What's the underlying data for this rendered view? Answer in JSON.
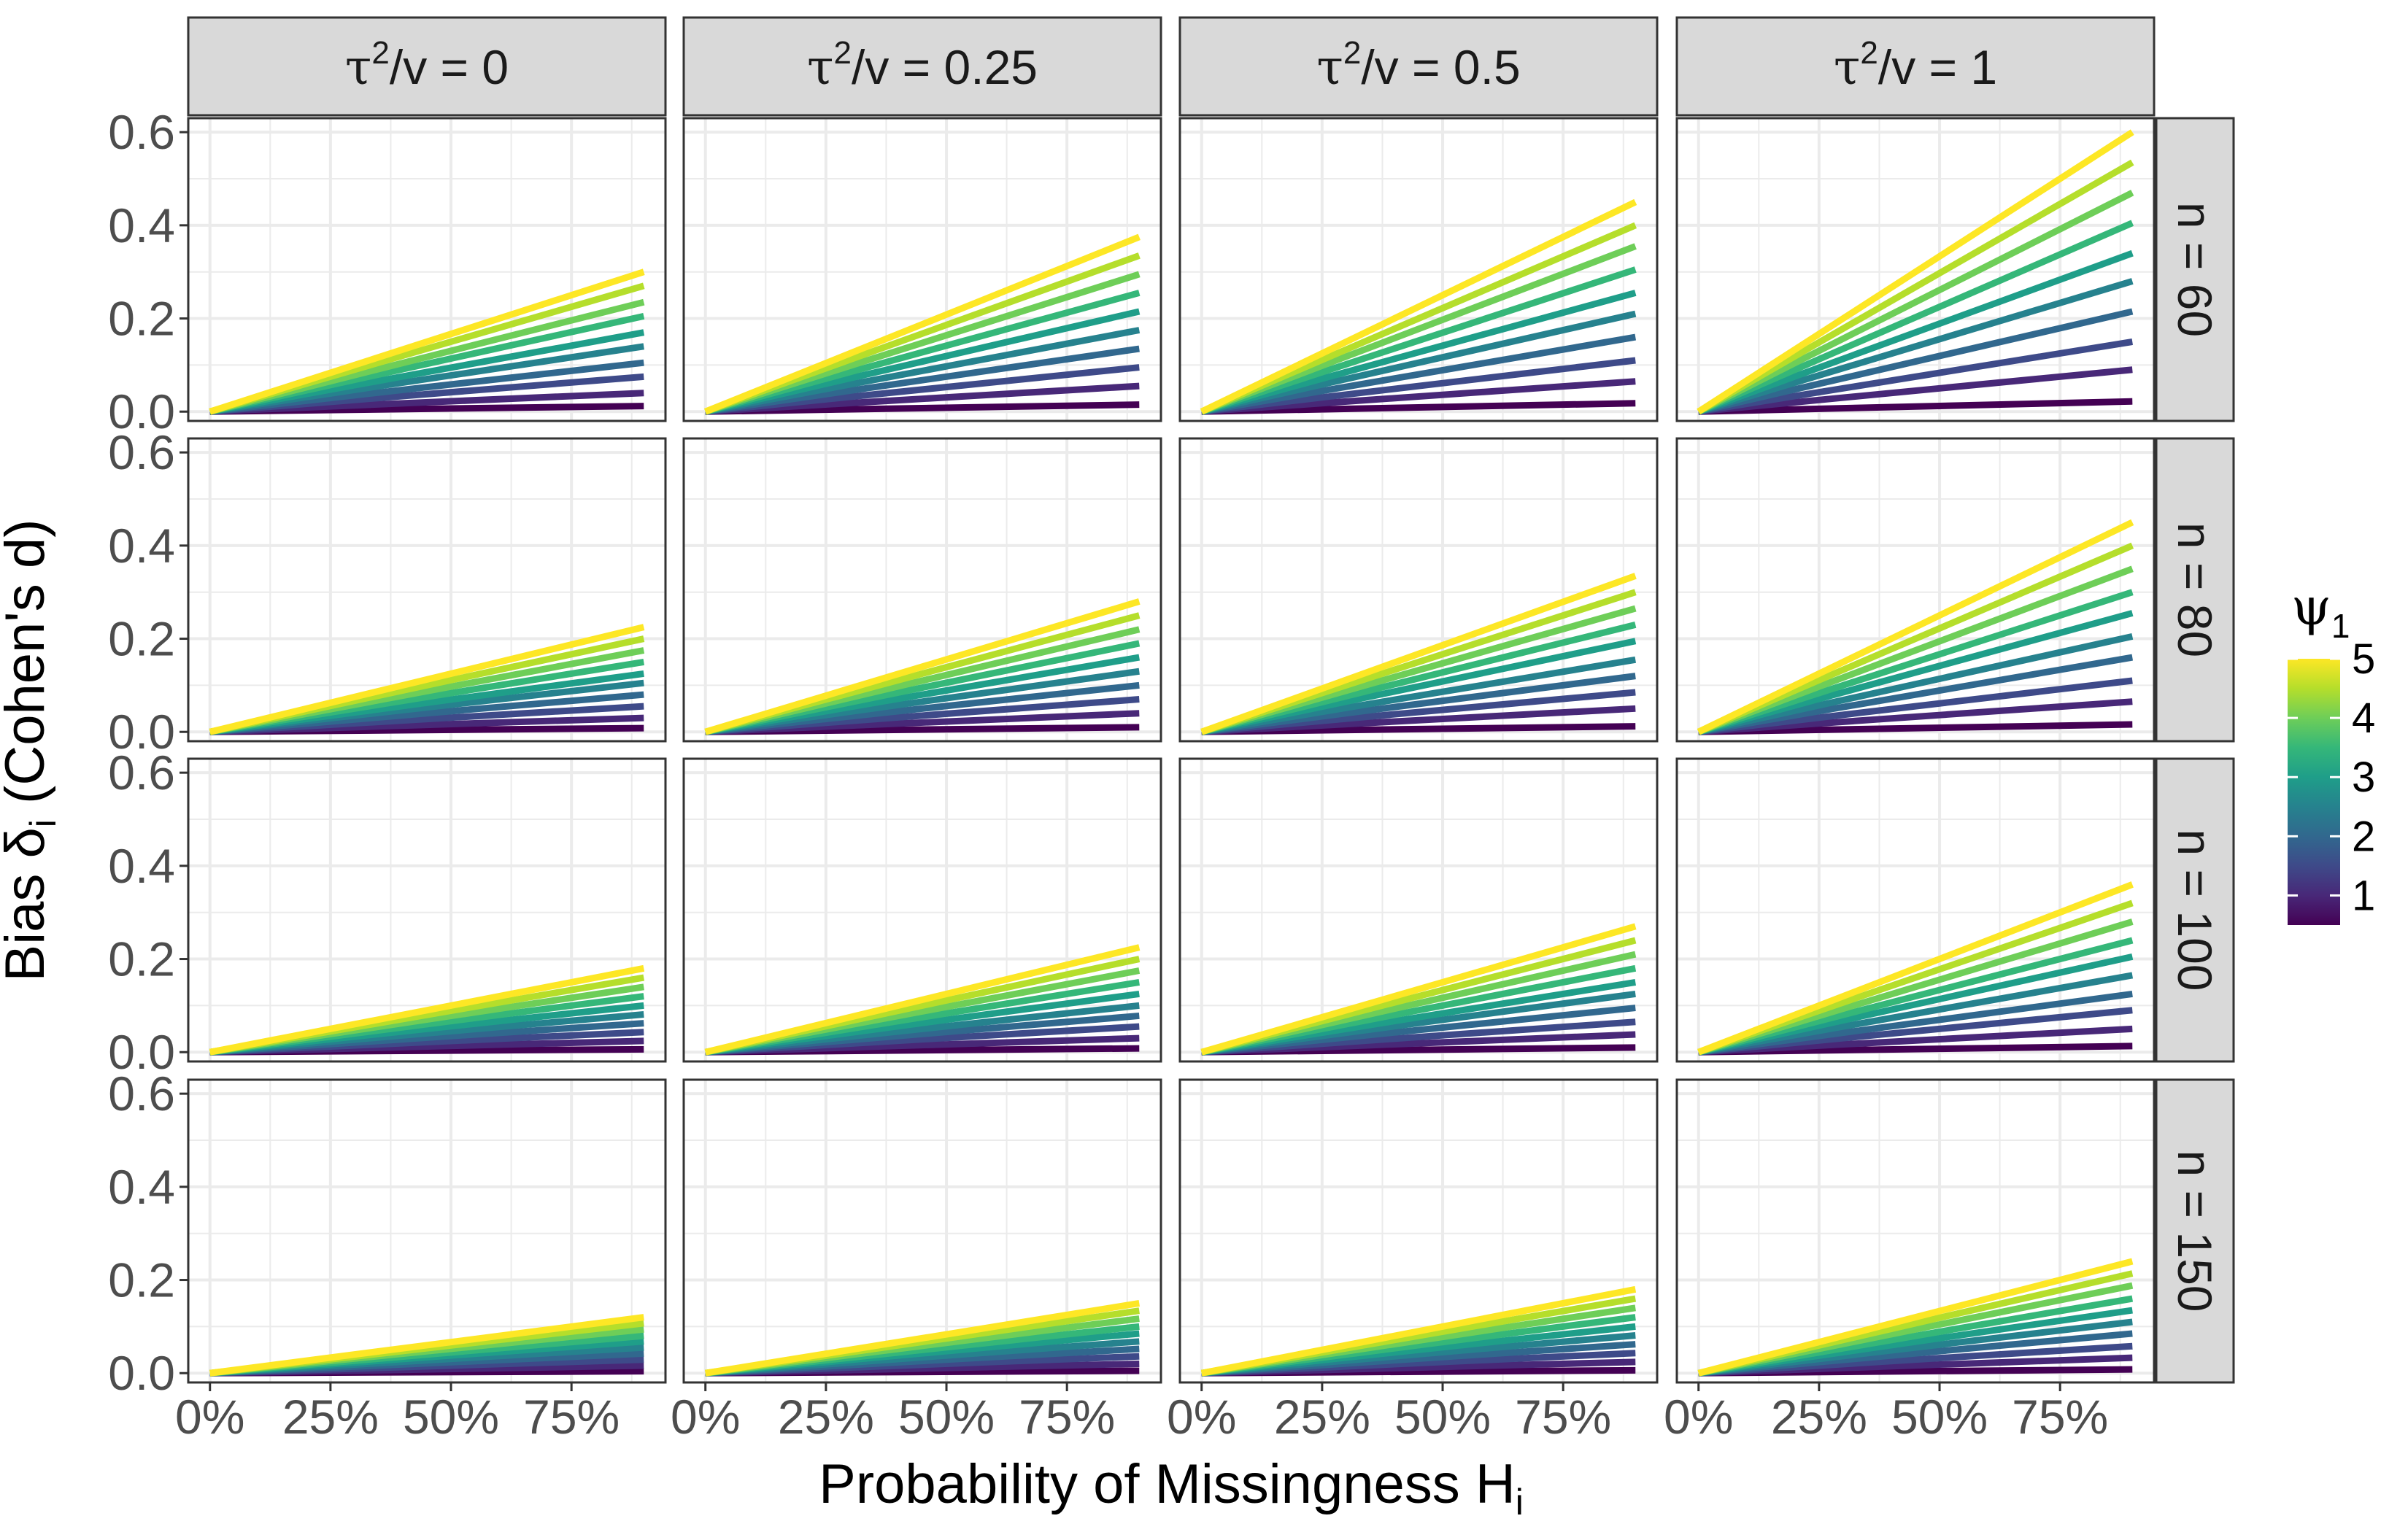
{
  "chart_data": {
    "type": "line",
    "facet_layout": "grid",
    "column_facet": {
      "labels": [
        "0",
        "0.25",
        "0.5",
        "1"
      ],
      "label_prefix": "τ²/v = ",
      "strip_prefix_parts": {
        "symbol": "τ",
        "power": "2",
        "rest": "/v = "
      }
    },
    "row_facet": {
      "labels": [
        "n = 60",
        "n = 80",
        "n = 100",
        "n = 150"
      ]
    },
    "x": [
      0,
      0.9
    ],
    "x_ticks": [
      0,
      0.25,
      0.5,
      0.75
    ],
    "x_tick_labels": [
      "0%",
      "25%",
      "50%",
      "75%"
    ],
    "xlim": [
      -0.045,
      0.945
    ],
    "y_ticks": [
      0.0,
      0.2,
      0.4,
      0.6
    ],
    "y_tick_labels": [
      "0.0",
      "0.2",
      "0.4",
      "0.6"
    ],
    "ylim": [
      -0.02,
      0.63
    ],
    "xlabel": {
      "main": "Probability of Missingness H",
      "sub": "i"
    },
    "ylabel": {
      "pre": "Bias δ",
      "sub": "i",
      "post": " (Cohen's d)"
    },
    "legend": {
      "title_symbol": "ψ",
      "title_sub": "1",
      "type": "colorbar",
      "position": "right",
      "range": [
        0.5,
        5.0
      ],
      "ticks": [
        1,
        2,
        3,
        4,
        5
      ],
      "tick_labels": [
        "1",
        "2",
        "3",
        "4",
        "5"
      ],
      "colormap": "viridis"
    },
    "psi1_values": [
      0.5,
      1.0,
      1.5,
      2.0,
      2.5,
      3.0,
      3.5,
      4.0,
      4.5,
      5.0
    ],
    "endpoint_values_at_x_0_9": [
      [
        [
          0.012,
          0.04,
          0.075,
          0.105,
          0.14,
          0.17,
          0.205,
          0.235,
          0.27,
          0.3
        ],
        [
          0.015,
          0.055,
          0.095,
          0.135,
          0.175,
          0.215,
          0.255,
          0.295,
          0.335,
          0.375
        ],
        [
          0.018,
          0.065,
          0.11,
          0.16,
          0.21,
          0.255,
          0.305,
          0.355,
          0.4,
          0.45
        ],
        [
          0.022,
          0.09,
          0.15,
          0.215,
          0.28,
          0.34,
          0.405,
          0.47,
          0.535,
          0.6
        ]
      ],
      [
        [
          0.008,
          0.03,
          0.055,
          0.08,
          0.105,
          0.125,
          0.15,
          0.175,
          0.2,
          0.225
        ],
        [
          0.01,
          0.04,
          0.07,
          0.1,
          0.13,
          0.16,
          0.19,
          0.22,
          0.25,
          0.28
        ],
        [
          0.012,
          0.05,
          0.085,
          0.12,
          0.155,
          0.195,
          0.23,
          0.265,
          0.3,
          0.335
        ],
        [
          0.016,
          0.065,
          0.11,
          0.16,
          0.205,
          0.255,
          0.3,
          0.35,
          0.4,
          0.45
        ]
      ],
      [
        [
          0.006,
          0.024,
          0.043,
          0.062,
          0.081,
          0.1,
          0.12,
          0.14,
          0.16,
          0.18
        ],
        [
          0.008,
          0.03,
          0.055,
          0.078,
          0.1,
          0.125,
          0.15,
          0.175,
          0.2,
          0.225
        ],
        [
          0.01,
          0.038,
          0.065,
          0.095,
          0.125,
          0.15,
          0.18,
          0.21,
          0.24,
          0.27
        ],
        [
          0.013,
          0.05,
          0.09,
          0.125,
          0.165,
          0.205,
          0.24,
          0.28,
          0.32,
          0.36
        ]
      ],
      [
        [
          0.004,
          0.016,
          0.029,
          0.042,
          0.055,
          0.068,
          0.08,
          0.094,
          0.107,
          0.12
        ],
        [
          0.005,
          0.02,
          0.036,
          0.052,
          0.068,
          0.085,
          0.1,
          0.117,
          0.134,
          0.15
        ],
        [
          0.006,
          0.024,
          0.043,
          0.062,
          0.081,
          0.1,
          0.12,
          0.14,
          0.16,
          0.18
        ],
        [
          0.008,
          0.033,
          0.058,
          0.085,
          0.11,
          0.135,
          0.16,
          0.188,
          0.214,
          0.24
        ]
      ]
    ],
    "series_colors": [
      "#440154",
      "#482878",
      "#3e4a89",
      "#31688e",
      "#26828e",
      "#1f9e89",
      "#35b779",
      "#6ece58",
      "#b5de2b",
      "#fde725"
    ],
    "grid": true,
    "panel_background": "#ffffff",
    "grid_color": "#ebebeb",
    "strip_fill": "#d9d9d9",
    "panel_border": "#333333"
  }
}
